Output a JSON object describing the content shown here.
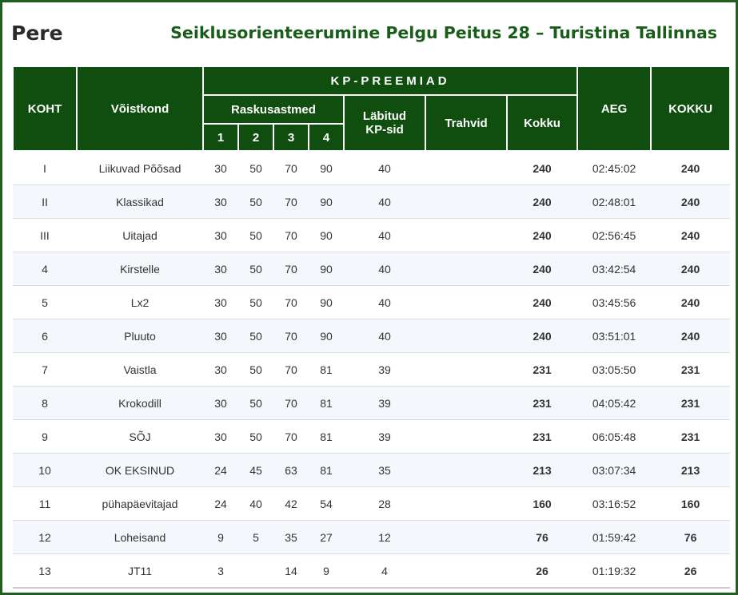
{
  "header": {
    "left_title": "Pere",
    "right_title": "Seiklusorienteerumine Pelgu Peitus 28 – Turistina Tallinnas"
  },
  "columns": {
    "koht": "KOHT",
    "voistkond": "Võistkond",
    "kp_preemiad": "KP-PREEMIAD",
    "raskusastmed": "Raskusastmed",
    "levels": [
      "1",
      "2",
      "3",
      "4"
    ],
    "labitud_line1": "Läbitud",
    "labitud_line2": "KP-sid",
    "trahvid": "Trahvid",
    "kokku": "Kokku",
    "aeg": "AEG",
    "kokku_total": "KOKKU"
  },
  "rows": [
    {
      "place": "I",
      "team": "Liikuvad Põõsad",
      "l1": "30",
      "l2": "50",
      "l3": "70",
      "l4": "90",
      "kp": "40",
      "penalty": "",
      "sum": "240",
      "time": "02:45:02",
      "total": "240"
    },
    {
      "place": "II",
      "team": "Klassikad",
      "l1": "30",
      "l2": "50",
      "l3": "70",
      "l4": "90",
      "kp": "40",
      "penalty": "",
      "sum": "240",
      "time": "02:48:01",
      "total": "240"
    },
    {
      "place": "III",
      "team": "Uitajad",
      "l1": "30",
      "l2": "50",
      "l3": "70",
      "l4": "90",
      "kp": "40",
      "penalty": "",
      "sum": "240",
      "time": "02:56:45",
      "total": "240"
    },
    {
      "place": "4",
      "team": "Kirstelle",
      "l1": "30",
      "l2": "50",
      "l3": "70",
      "l4": "90",
      "kp": "40",
      "penalty": "",
      "sum": "240",
      "time": "03:42:54",
      "total": "240"
    },
    {
      "place": "5",
      "team": "Lx2",
      "l1": "30",
      "l2": "50",
      "l3": "70",
      "l4": "90",
      "kp": "40",
      "penalty": "",
      "sum": "240",
      "time": "03:45:56",
      "total": "240"
    },
    {
      "place": "6",
      "team": "Pluuto",
      "l1": "30",
      "l2": "50",
      "l3": "70",
      "l4": "90",
      "kp": "40",
      "penalty": "",
      "sum": "240",
      "time": "03:51:01",
      "total": "240"
    },
    {
      "place": "7",
      "team": "Vaistla",
      "l1": "30",
      "l2": "50",
      "l3": "70",
      "l4": "81",
      "kp": "39",
      "penalty": "",
      "sum": "231",
      "time": "03:05:50",
      "total": "231"
    },
    {
      "place": "8",
      "team": "Krokodill",
      "l1": "30",
      "l2": "50",
      "l3": "70",
      "l4": "81",
      "kp": "39",
      "penalty": "",
      "sum": "231",
      "time": "04:05:42",
      "total": "231"
    },
    {
      "place": "9",
      "team": "SÕJ",
      "l1": "30",
      "l2": "50",
      "l3": "70",
      "l4": "81",
      "kp": "39",
      "penalty": "",
      "sum": "231",
      "time": "06:05:48",
      "total": "231"
    },
    {
      "place": "10",
      "team": "OK EKSINUD",
      "l1": "24",
      "l2": "45",
      "l3": "63",
      "l4": "81",
      "kp": "35",
      "penalty": "",
      "sum": "213",
      "time": "03:07:34",
      "total": "213"
    },
    {
      "place": "11",
      "team": "pühapäevitajad",
      "l1": "24",
      "l2": "40",
      "l3": "42",
      "l4": "54",
      "kp": "28",
      "penalty": "",
      "sum": "160",
      "time": "03:16:52",
      "total": "160"
    },
    {
      "place": "12",
      "team": "Loheisand",
      "l1": "9",
      "l2": "5",
      "l3": "35",
      "l4": "27",
      "kp": "12",
      "penalty": "",
      "sum": "76",
      "time": "01:59:42",
      "total": "76"
    },
    {
      "place": "13",
      "team": "JT11",
      "l1": "3",
      "l2": "",
      "l3": "14",
      "l4": "9",
      "kp": "4",
      "penalty": "",
      "sum": "26",
      "time": "01:19:32",
      "total": "26"
    }
  ]
}
